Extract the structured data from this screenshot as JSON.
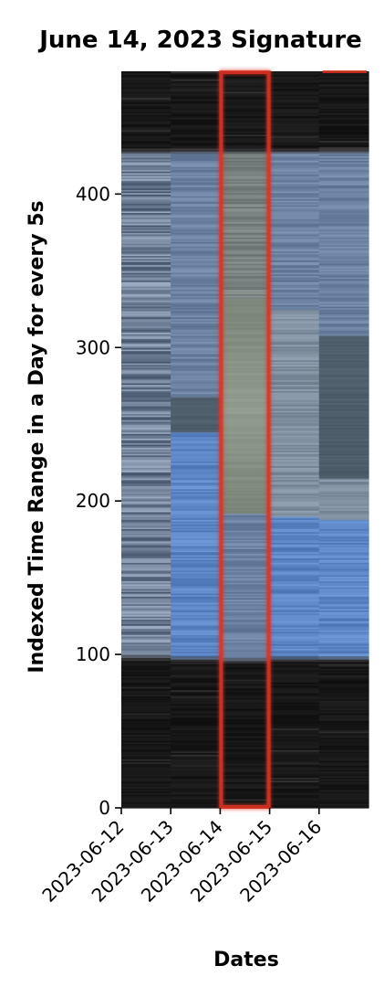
{
  "chart_data": {
    "type": "heatmap",
    "title": "June 14, 2023 Signature",
    "xlabel": "Dates",
    "ylabel": "Indexed Time Range in a Day for every 5s",
    "categories": [
      "2023-06-12",
      "2023-06-13",
      "2023-06-14",
      "2023-06-15",
      "2023-06-16"
    ],
    "ylim": [
      0,
      480
    ],
    "y_ticks": [
      0,
      100,
      200,
      300,
      400
    ],
    "highlight": {
      "category": "2023-06-14",
      "color": "#e03020"
    },
    "colors": {
      "night": "#0e0e0e",
      "day_blue": "#5a84c4",
      "day_gray": "#7c8c9e",
      "dark_band": "#52606a",
      "highlight_outline": "#e03020"
    },
    "columns": [
      {
        "date": "2023-06-12",
        "segments": [
          {
            "from": 0,
            "to": 98,
            "level": "night"
          },
          {
            "from": 98,
            "to": 428,
            "level": "day_striped_blue_gray"
          },
          {
            "from": 428,
            "to": 480,
            "level": "night"
          }
        ]
      },
      {
        "date": "2023-06-13",
        "segments": [
          {
            "from": 0,
            "to": 97,
            "level": "night"
          },
          {
            "from": 97,
            "to": 245,
            "level": "day_blue"
          },
          {
            "from": 245,
            "to": 268,
            "level": "dark_band"
          },
          {
            "from": 268,
            "to": 428,
            "level": "day_blue_gray"
          },
          {
            "from": 428,
            "to": 480,
            "level": "night"
          }
        ]
      },
      {
        "date": "2023-06-14",
        "segments": [
          {
            "from": 0,
            "to": 96,
            "level": "night"
          },
          {
            "from": 96,
            "to": 192,
            "level": "day_blue_gray"
          },
          {
            "from": 192,
            "to": 332,
            "level": "day_olive_gray"
          },
          {
            "from": 332,
            "to": 428,
            "level": "day_olive_blue"
          },
          {
            "from": 428,
            "to": 480,
            "level": "night"
          }
        ]
      },
      {
        "date": "2023-06-15",
        "segments": [
          {
            "from": 0,
            "to": 97,
            "level": "night"
          },
          {
            "from": 97,
            "to": 190,
            "level": "day_blue"
          },
          {
            "from": 190,
            "to": 325,
            "level": "day_gray"
          },
          {
            "from": 325,
            "to": 428,
            "level": "day_blue_gray"
          },
          {
            "from": 428,
            "to": 480,
            "level": "night"
          }
        ]
      },
      {
        "date": "2023-06-16",
        "segments": [
          {
            "from": 0,
            "to": 97,
            "level": "night"
          },
          {
            "from": 97,
            "to": 188,
            "level": "day_blue"
          },
          {
            "from": 188,
            "to": 215,
            "level": "day_gray"
          },
          {
            "from": 215,
            "to": 308,
            "level": "dark_band"
          },
          {
            "from": 308,
            "to": 428,
            "level": "day_blue_gray"
          },
          {
            "from": 428,
            "to": 480,
            "level": "night"
          }
        ]
      }
    ],
    "grid": false,
    "legend": "none"
  }
}
